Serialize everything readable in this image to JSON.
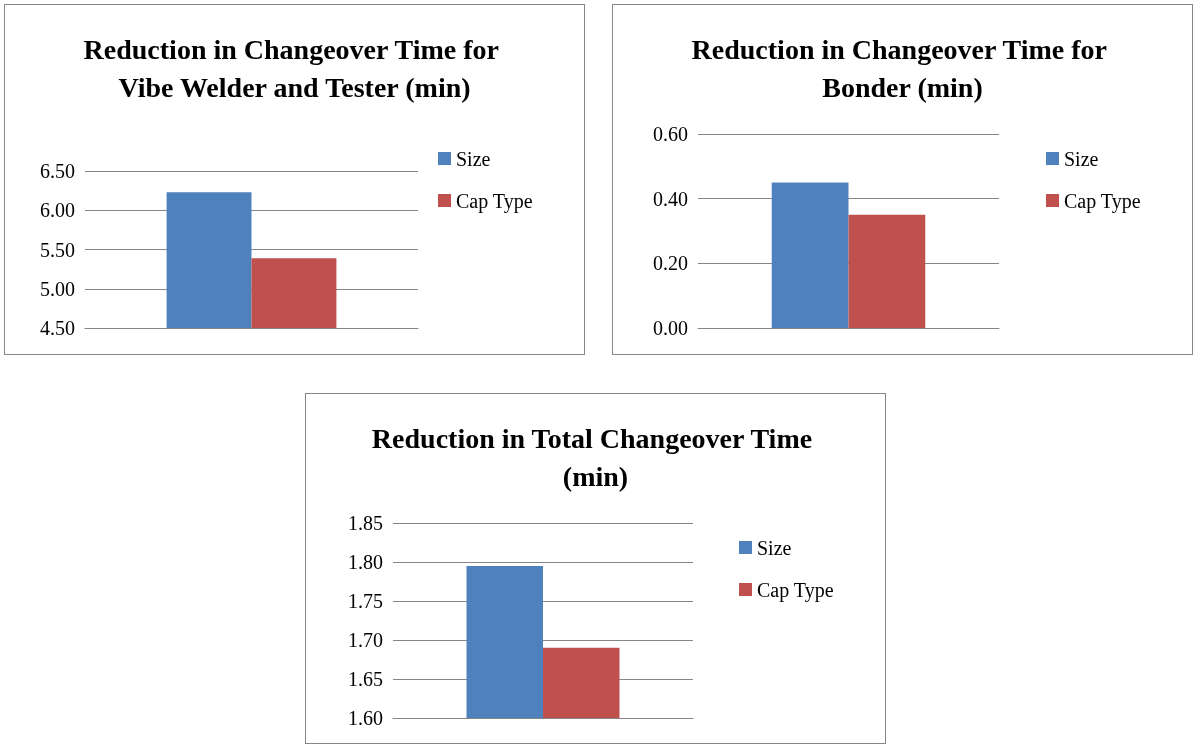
{
  "chart_data": [
    {
      "type": "bar",
      "title": "Reduction in Changeover Time for Vibe Welder and Tester (min)",
      "categories": [
        null
      ],
      "series": [
        {
          "name": "Size",
          "color": "#4f81bd",
          "values": [
            6.23
          ]
        },
        {
          "name": "Cap Type",
          "color": "#c0504d",
          "values": [
            5.39
          ]
        }
      ],
      "ylim": [
        4.5,
        6.5
      ],
      "yticks": [
        {
          "value": 4.5,
          "label": "4.50"
        },
        {
          "value": 5,
          "label": "5.00"
        },
        {
          "value": 5.5,
          "label": "5.50"
        },
        {
          "value": 6,
          "label": "6.00"
        },
        {
          "value": 6.5,
          "label": "6.50"
        }
      ],
      "grid": "y",
      "legend": "right"
    },
    {
      "type": "bar",
      "title": "Reduction in Changeover Time for Bonder (min)",
      "categories": [
        null
      ],
      "series": [
        {
          "name": "Size",
          "color": "#4f81bd",
          "values": [
            0.45
          ]
        },
        {
          "name": "Cap Type",
          "color": "#c0504d",
          "values": [
            0.35
          ]
        }
      ],
      "ylim": [
        0,
        0.6
      ],
      "yticks": [
        {
          "value": 0,
          "label": "0.00"
        },
        {
          "value": 0.2,
          "label": "0.20"
        },
        {
          "value": 0.4,
          "label": "0.40"
        },
        {
          "value": 0.6,
          "label": "0.60"
        }
      ],
      "grid": "y",
      "legend": "right"
    },
    {
      "type": "bar",
      "title": "Reduction in Total Changeover Time (min)",
      "categories": [
        null
      ],
      "series": [
        {
          "name": "Size",
          "color": "#4f81bd",
          "values": [
            1.795
          ]
        },
        {
          "name": "Cap Type",
          "color": "#c0504d",
          "values": [
            1.69
          ]
        }
      ],
      "ylim": [
        1.6,
        1.85
      ],
      "yticks": [
        {
          "value": 1.6,
          "label": "1.60"
        },
        {
          "value": 1.65,
          "label": "1.65"
        },
        {
          "value": 1.7,
          "label": "1.70"
        },
        {
          "value": 1.75,
          "label": "1.75"
        },
        {
          "value": 1.8,
          "label": "1.80"
        },
        {
          "value": 1.85,
          "label": "1.85"
        }
      ],
      "grid": "y",
      "legend": "right"
    }
  ]
}
